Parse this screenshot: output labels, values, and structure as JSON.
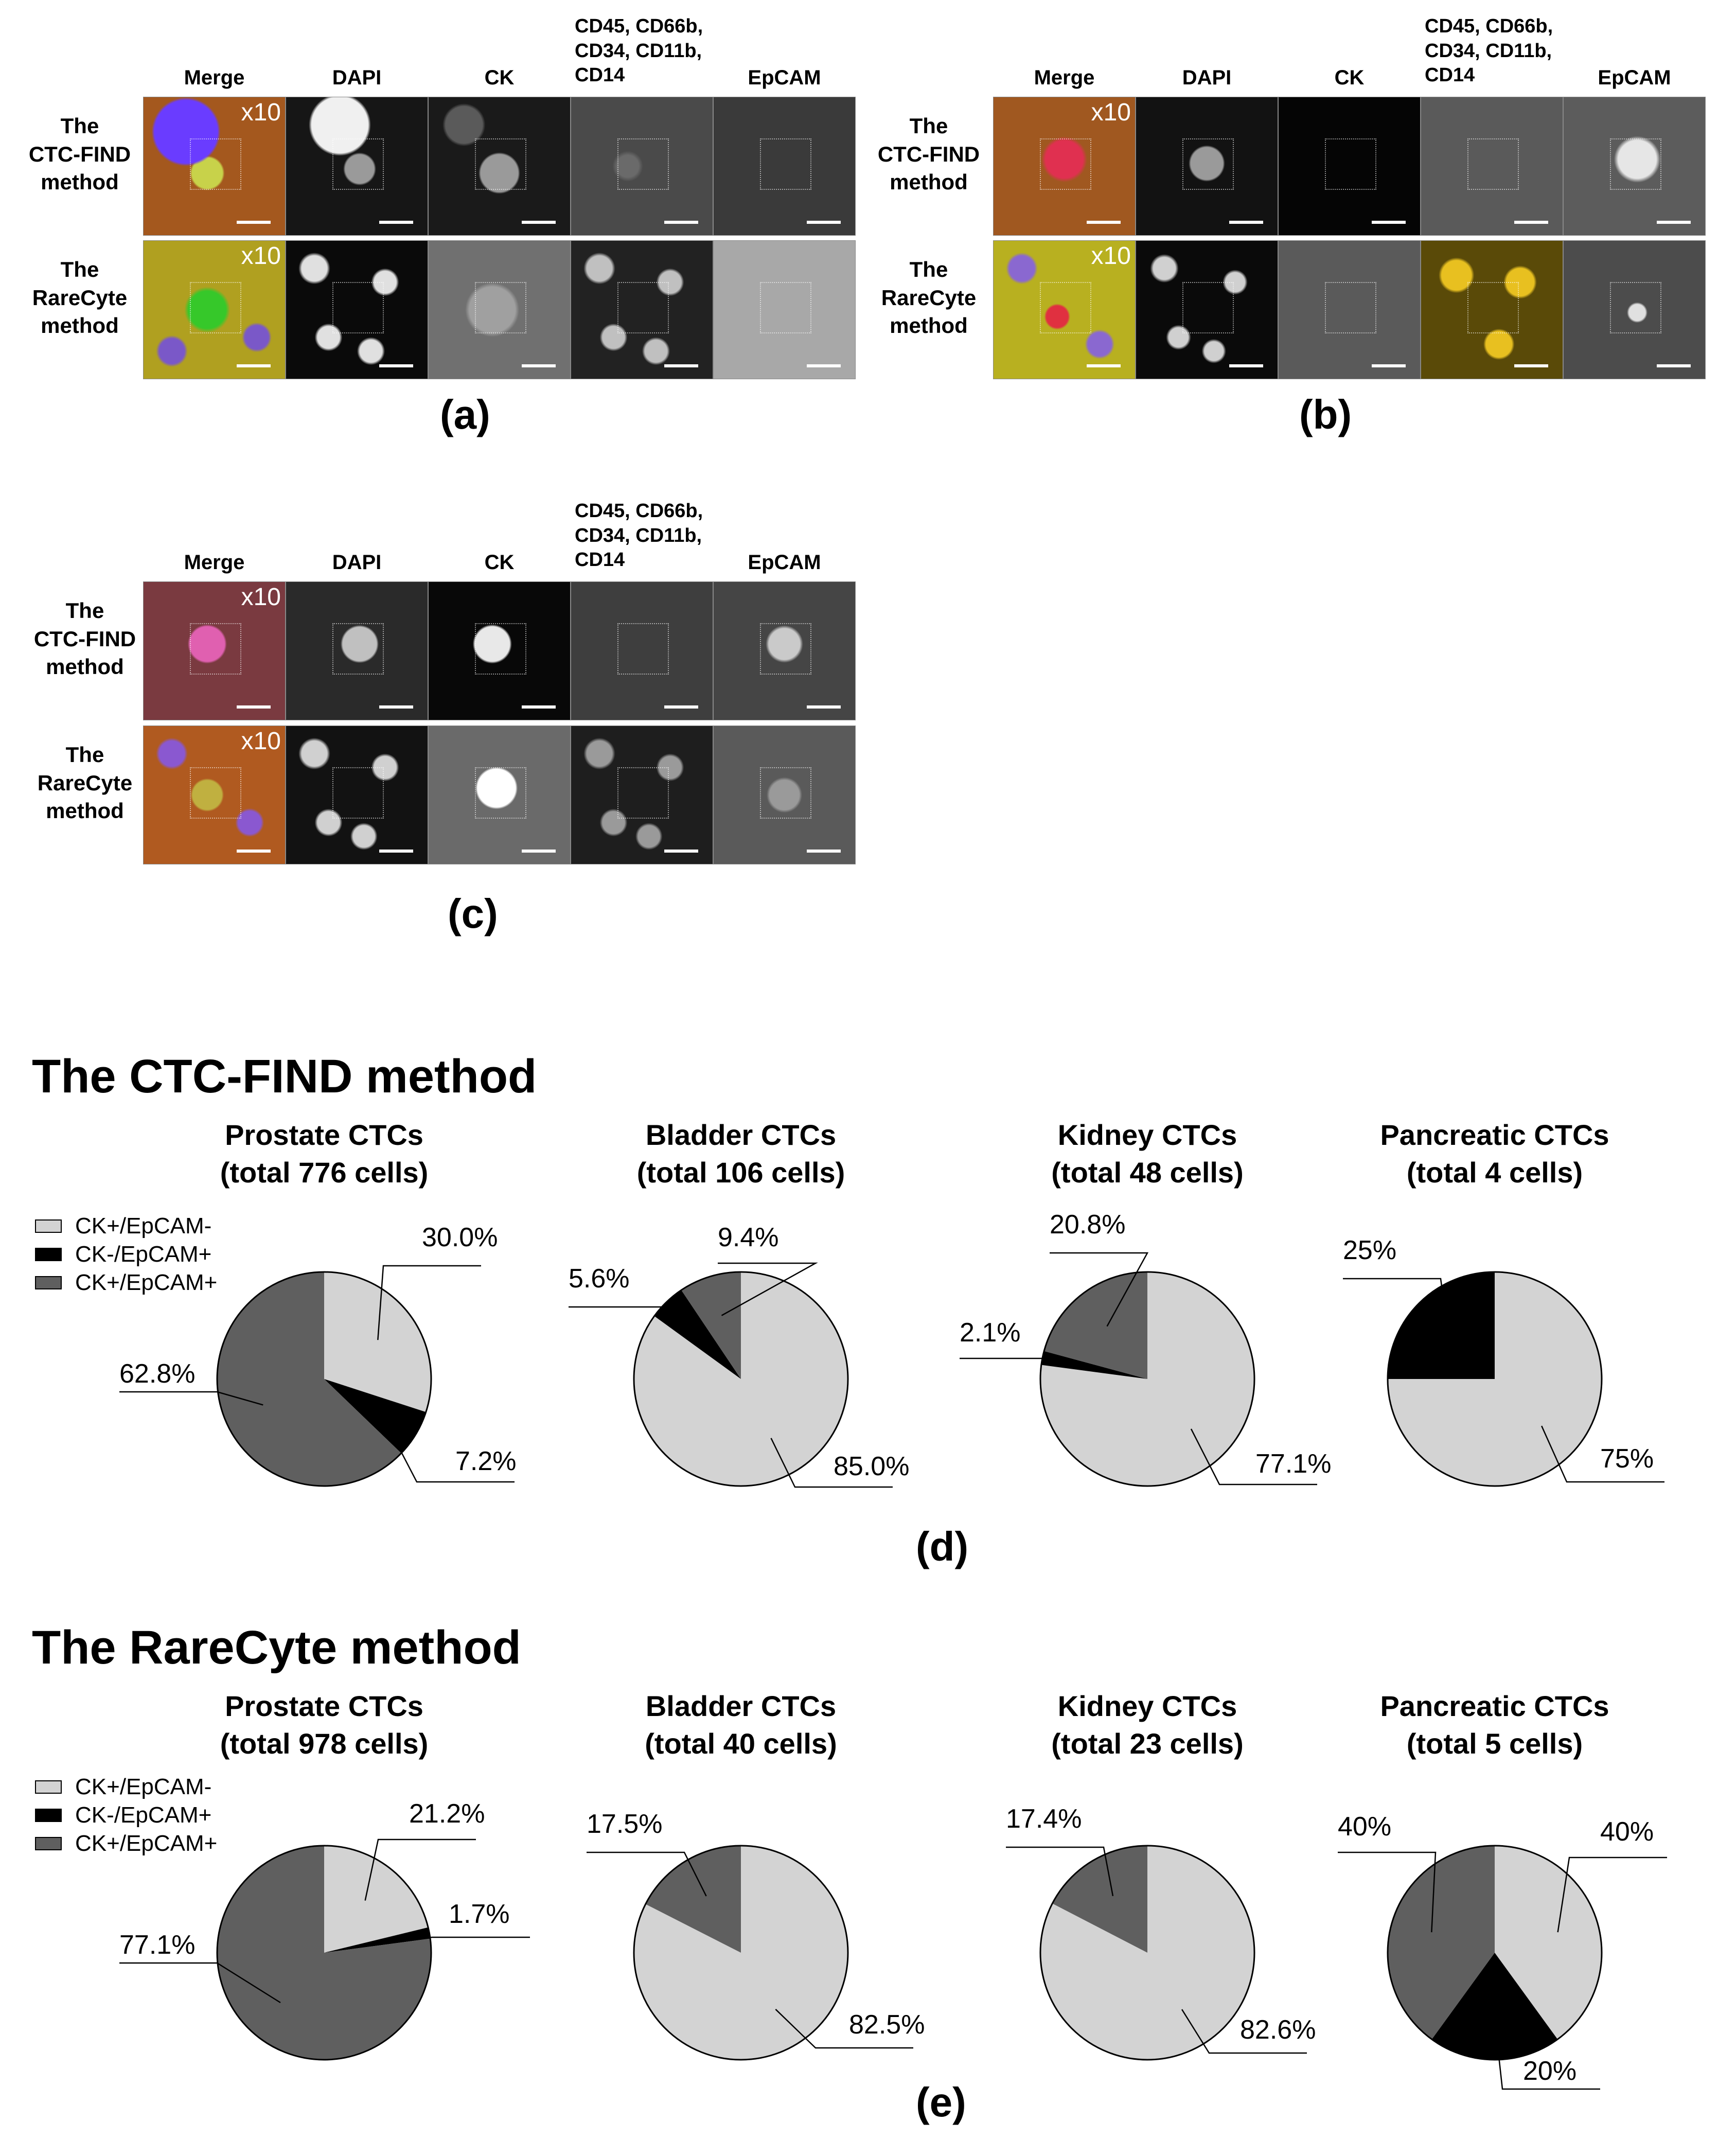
{
  "panels": [
    {
      "letter": "(a)",
      "columns": [
        "Merge",
        "DAPI",
        "CK",
        "CD45, CD66b,\nCD34, CD11b,\nCD14",
        "EpCAM"
      ],
      "rows": [
        "The\nCTC-FIND\nmethod",
        "The\nRareCyte\nmethod"
      ],
      "magnification": "x10"
    },
    {
      "letter": "(b)",
      "columns": [
        "Merge",
        "DAPI",
        "CK",
        "CD45, CD66b,\nCD34, CD11b,\nCD14",
        "EpCAM"
      ],
      "rows": [
        "The\nCTC-FIND\nmethod",
        "The\nRareCyte\nmethod"
      ],
      "magnification": "x10"
    },
    {
      "letter": "(c)",
      "columns": [
        "Merge",
        "DAPI",
        "CK",
        "CD45, CD66b,\nCD34, CD11b,\nCD14",
        "EpCAM"
      ],
      "rows": [
        "The\nCTC-FIND\nmethod",
        "The\nRareCyte\nmethod"
      ],
      "magnification": "x10"
    }
  ],
  "colors": {
    "ck_pos_epcam_neg": "#d3d3d3",
    "ck_neg_epcam_pos": "#000000",
    "ck_pos_epcam_pos": "#5f5f5f"
  },
  "legend": [
    "CK+/EpCAM-",
    "CK-/EpCAM+",
    "CK+/EpCAM+"
  ],
  "sections": [
    {
      "title": "The CTC-FIND method",
      "letter": "(d)",
      "pies": [
        {
          "title": "Prostate CTCs\n(total 776 cells)",
          "labels": [
            "30.0%",
            "7.2%",
            "62.8%"
          ]
        },
        {
          "title": "Bladder CTCs\n(total 106 cells)",
          "labels": [
            "85.0%",
            "5.6%",
            "9.4%"
          ]
        },
        {
          "title": "Kidney CTCs\n(total 48 cells)",
          "labels": [
            "77.1%",
            "2.1%",
            "20.8%"
          ]
        },
        {
          "title": "Pancreatic CTCs\n(total 4 cells)",
          "labels": [
            "75%",
            "25%",
            ""
          ]
        }
      ]
    },
    {
      "title": "The RareCyte method",
      "letter": "(e)",
      "pies": [
        {
          "title": "Prostate CTCs\n(total 978 cells)",
          "labels": [
            "21.2%",
            "1.7%",
            "77.1%"
          ]
        },
        {
          "title": "Bladder CTCs\n(total 40 cells)",
          "labels": [
            "82.5%",
            "",
            "17.5%"
          ]
        },
        {
          "title": "Kidney CTCs\n(total 23 cells)",
          "labels": [
            "82.6%",
            "",
            "17.4%"
          ]
        },
        {
          "title": "Pancreatic CTCs\n(total 5 cells)",
          "labels": [
            "40%",
            "20%",
            "40%"
          ]
        }
      ]
    }
  ],
  "chart_data": [
    {
      "type": "pie",
      "title": "Prostate CTCs (total 776 cells)",
      "categories": [
        "CK+/EpCAM-",
        "CK-/EpCAM+",
        "CK+/EpCAM+"
      ],
      "values": [
        30.0,
        7.2,
        62.8
      ]
    },
    {
      "type": "pie",
      "title": "Bladder CTCs (total 106 cells)",
      "categories": [
        "CK+/EpCAM-",
        "CK-/EpCAM+",
        "CK+/EpCAM+"
      ],
      "values": [
        85.0,
        5.6,
        9.4
      ]
    },
    {
      "type": "pie",
      "title": "Kidney CTCs (total 48 cells)",
      "categories": [
        "CK+/EpCAM-",
        "CK-/EpCAM+",
        "CK+/EpCAM+"
      ],
      "values": [
        77.1,
        2.1,
        20.8
      ]
    },
    {
      "type": "pie",
      "title": "Pancreatic CTCs (total 4 cells)",
      "categories": [
        "CK+/EpCAM-",
        "CK-/EpCAM+",
        "CK+/EpCAM+"
      ],
      "values": [
        75,
        25,
        0
      ]
    },
    {
      "type": "pie",
      "title": "Prostate CTCs (total 978 cells)",
      "categories": [
        "CK+/EpCAM-",
        "CK-/EpCAM+",
        "CK+/EpCAM+"
      ],
      "values": [
        21.2,
        1.7,
        77.1
      ]
    },
    {
      "type": "pie",
      "title": "Bladder CTCs (total 40 cells)",
      "categories": [
        "CK+/EpCAM-",
        "CK-/EpCAM+",
        "CK+/EpCAM+"
      ],
      "values": [
        82.5,
        0,
        17.5
      ]
    },
    {
      "type": "pie",
      "title": "Kidney CTCs (total 23 cells)",
      "categories": [
        "CK+/EpCAM-",
        "CK-/EpCAM+",
        "CK+/EpCAM+"
      ],
      "values": [
        82.6,
        0,
        17.4
      ]
    },
    {
      "type": "pie",
      "title": "Pancreatic CTCs (total 5 cells)",
      "categories": [
        "CK+/EpCAM-",
        "CK-/EpCAM+",
        "CK+/EpCAM+"
      ],
      "values": [
        40,
        20,
        40
      ]
    }
  ]
}
